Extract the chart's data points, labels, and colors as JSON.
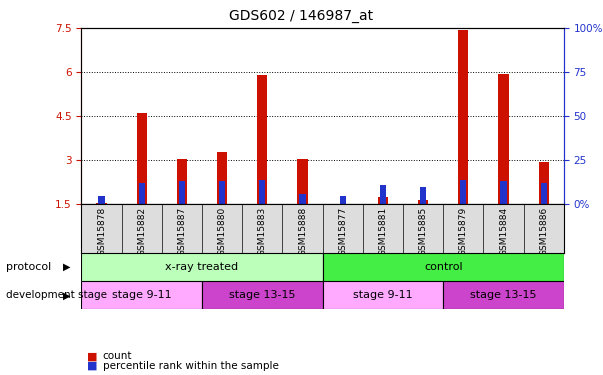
{
  "title": "GDS602 / 146987_at",
  "samples": [
    "GSM15878",
    "GSM15882",
    "GSM15887",
    "GSM15880",
    "GSM15883",
    "GSM15888",
    "GSM15877",
    "GSM15881",
    "GSM15885",
    "GSM15879",
    "GSM15884",
    "GSM15886"
  ],
  "count_values": [
    1.55,
    4.6,
    3.05,
    3.3,
    5.9,
    3.05,
    1.52,
    1.75,
    1.65,
    7.45,
    5.95,
    2.95
  ],
  "percentile_values": [
    5,
    12,
    13,
    13,
    14,
    6,
    5,
    11,
    10,
    14,
    13,
    12
  ],
  "ylim_left": [
    1.5,
    7.5
  ],
  "ylim_right": [
    0,
    100
  ],
  "yticks_left": [
    1.5,
    3.0,
    4.5,
    6.0,
    7.5
  ],
  "yticks_right": [
    0,
    25,
    50,
    75,
    100
  ],
  "ytick_labels_left": [
    "1.5",
    "3",
    "4.5",
    "6",
    "7.5"
  ],
  "ytick_labels_right": [
    "0%",
    "25",
    "50",
    "75",
    "100%"
  ],
  "protocol_groups": [
    {
      "label": "x-ray treated",
      "start": 0,
      "end": 6,
      "color": "#bbffbb"
    },
    {
      "label": "control",
      "start": 6,
      "end": 12,
      "color": "#44ee44"
    }
  ],
  "stage_groups": [
    {
      "label": "stage 9-11",
      "start": 0,
      "end": 3,
      "color": "#ffaaff"
    },
    {
      "label": "stage 13-15",
      "start": 3,
      "end": 6,
      "color": "#cc44cc"
    },
    {
      "label": "stage 9-11",
      "start": 6,
      "end": 9,
      "color": "#ffaaff"
    },
    {
      "label": "stage 13-15",
      "start": 9,
      "end": 12,
      "color": "#cc44cc"
    }
  ],
  "bar_color": "#cc1100",
  "pct_color": "#2233cc",
  "axis_color_left": "#cc1100",
  "axis_color_right": "#2233cc",
  "label_bg": "#dddddd",
  "plot_bg": "#ffffff"
}
